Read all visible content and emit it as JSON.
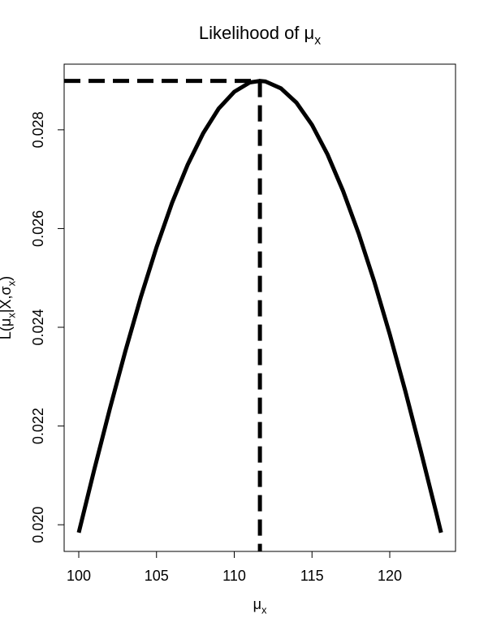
{
  "chart_data": {
    "type": "line",
    "title": [
      {
        "text": "Likelihood of μ",
        "sub": false
      },
      {
        "text": "x",
        "sub": true
      }
    ],
    "xlabel": [
      {
        "text": "μ",
        "sub": false
      },
      {
        "text": "x",
        "sub": true
      }
    ],
    "ylabel": [
      {
        "text": "L(μ",
        "sub": false
      },
      {
        "text": "x",
        "sub": true
      },
      {
        "text": "|X,σ",
        "sub": false
      },
      {
        "text": "x",
        "sub": true
      },
      {
        "text": ")",
        "sub": false
      }
    ],
    "x": [
      100,
      101,
      102,
      103,
      104,
      105,
      106,
      107,
      108,
      109,
      110,
      111,
      111.65,
      112,
      113,
      114,
      115,
      116,
      117,
      118,
      119,
      120,
      121,
      122,
      123,
      123.3
    ],
    "series": [
      {
        "color": "#000000",
        "values": [
          0.01984,
          0.02112,
          0.02235,
          0.02352,
          0.02462,
          0.02562,
          0.02652,
          0.02729,
          0.02793,
          0.02843,
          0.02877,
          0.02896,
          0.02899,
          0.02898,
          0.02884,
          0.02855,
          0.0281,
          0.0275,
          0.02676,
          0.0259,
          0.02493,
          0.02386,
          0.02271,
          0.02149,
          0.02023,
          0.01984
        ]
      }
    ],
    "mle": {
      "x": 111.65,
      "y": 0.02899
    },
    "xlim": [
      99.06,
      124.23
    ],
    "ylim": [
      0.01946,
      0.02933
    ],
    "xticks": [
      100,
      105,
      110,
      115,
      120
    ],
    "yticks": [
      {
        "value": 0.02,
        "label": "0.020"
      },
      0.022,
      0.024,
      0.026,
      0.028
    ]
  }
}
